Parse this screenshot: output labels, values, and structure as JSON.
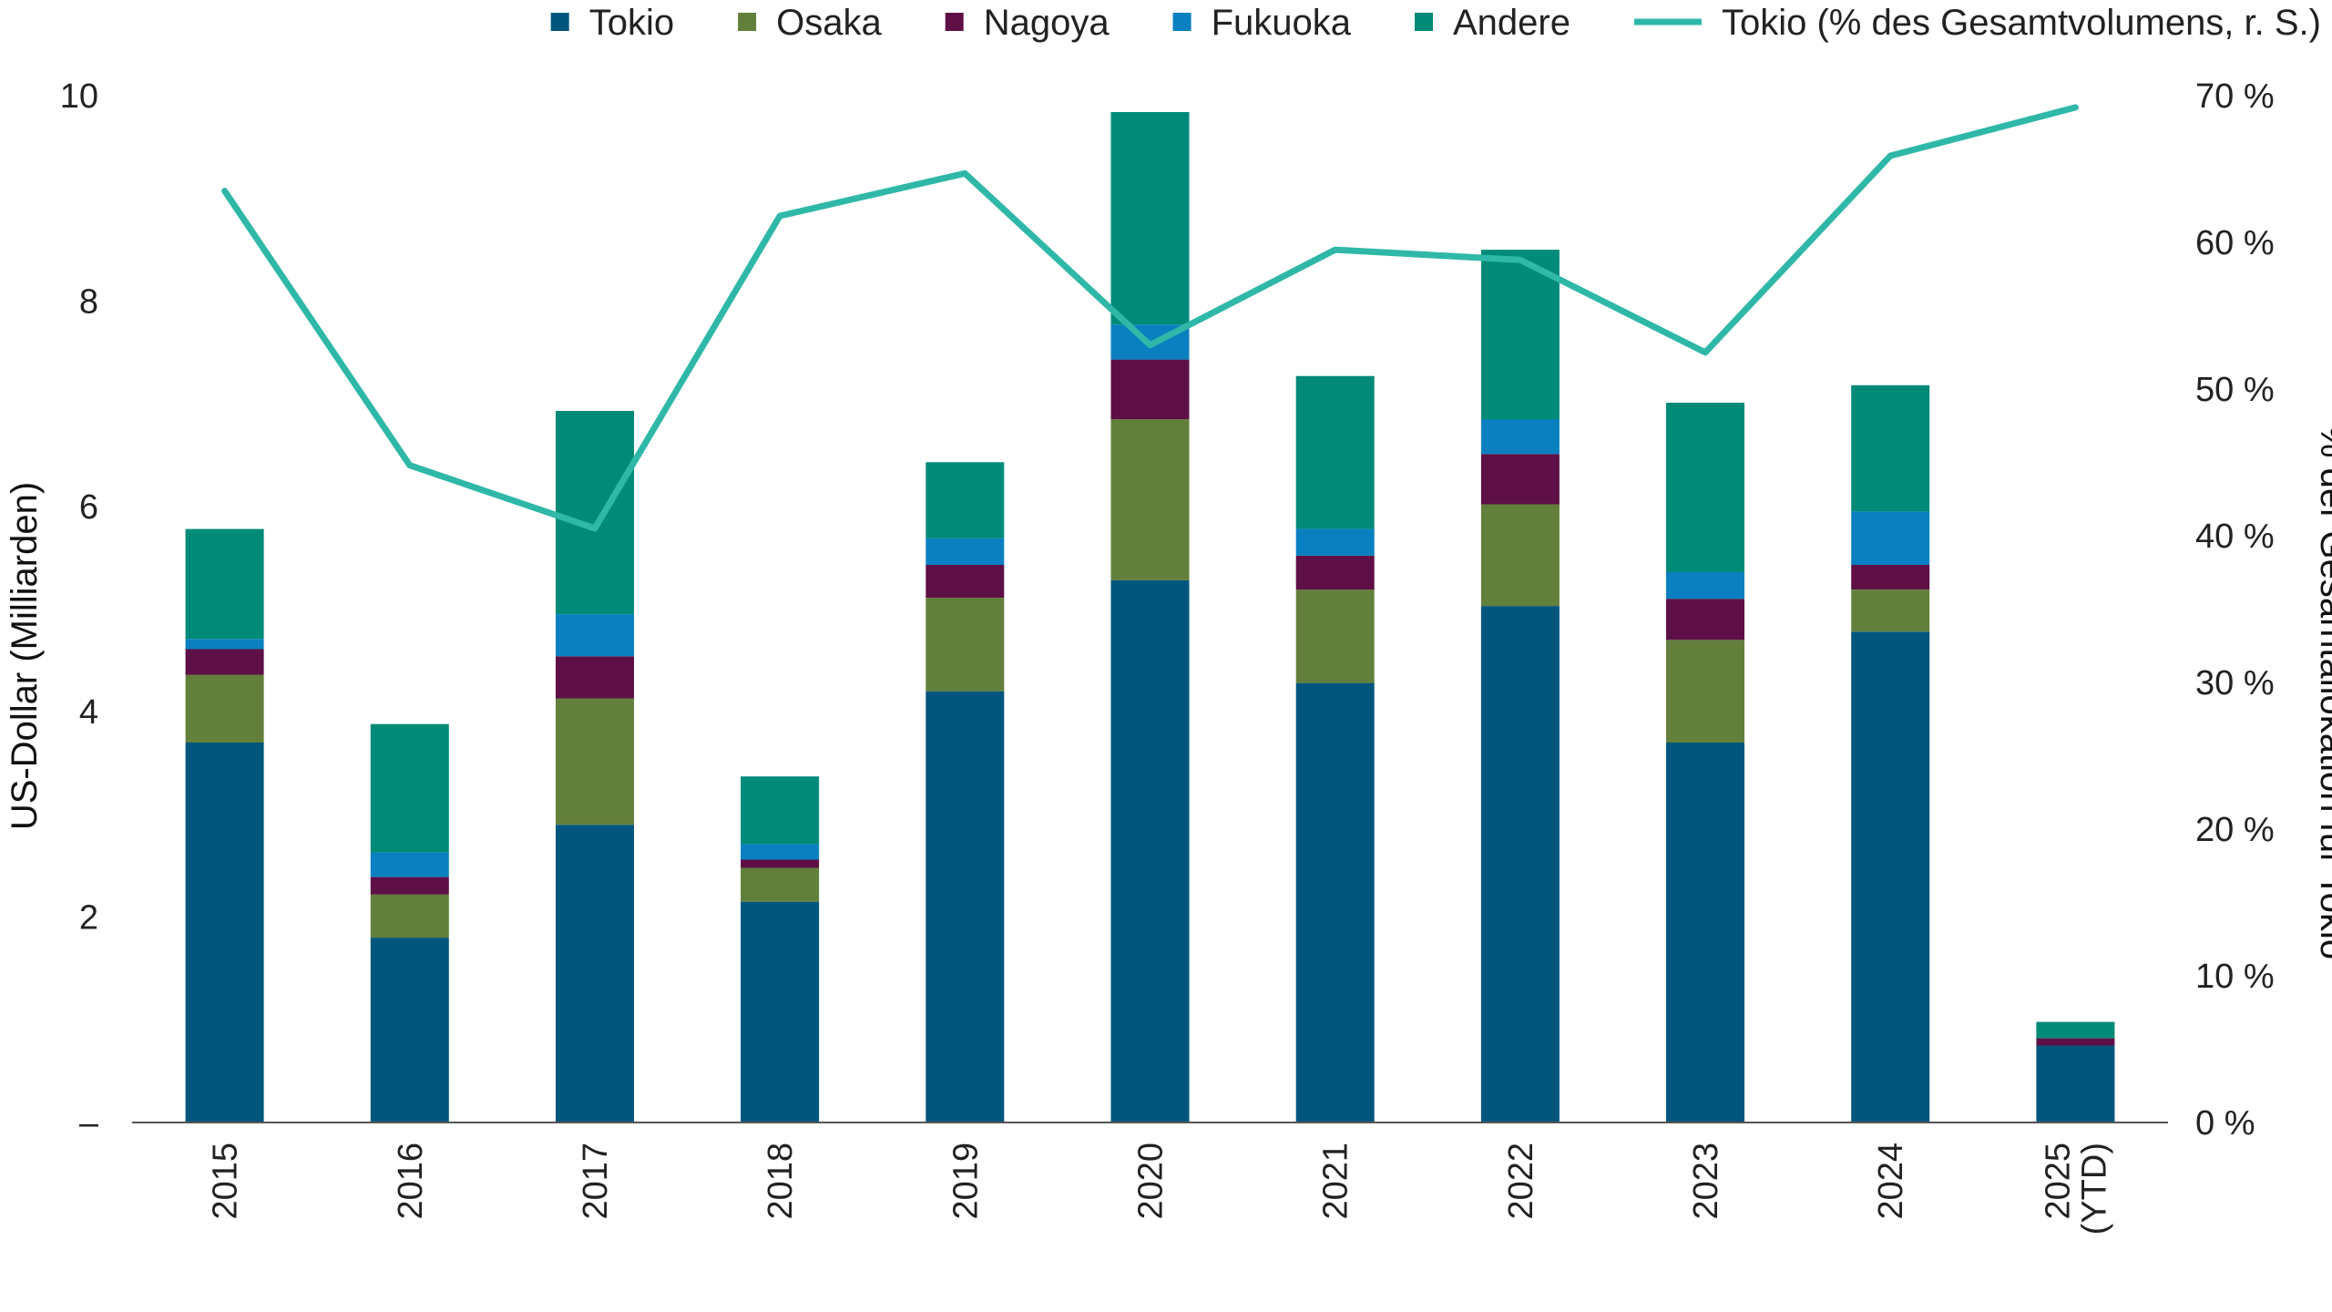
{
  "chart_data": {
    "type": "bar",
    "stacked": true,
    "categories": [
      "2015",
      "2016",
      "2017",
      "2018",
      "2019",
      "2020",
      "2021",
      "2022",
      "2023",
      "2024",
      "2025 (YTD)"
    ],
    "category_lines": [
      [
        "2015"
      ],
      [
        "2016"
      ],
      [
        "2017"
      ],
      [
        "2018"
      ],
      [
        "2019"
      ],
      [
        "2020"
      ],
      [
        "2021"
      ],
      [
        "2022"
      ],
      [
        "2023"
      ],
      [
        "2024"
      ],
      [
        "2025",
        "(YTD)"
      ]
    ],
    "series": [
      {
        "name": "Tokio",
        "color": "#00567d",
        "values": [
          3.7,
          1.8,
          2.9,
          2.15,
          4.2,
          5.28,
          4.28,
          5.03,
          3.7,
          4.78,
          0.75
        ]
      },
      {
        "name": "Osaka",
        "color": "#62803c",
        "values": [
          0.66,
          0.42,
          1.23,
          0.33,
          0.91,
          1.57,
          0.91,
          0.99,
          1.0,
          0.41,
          0
        ]
      },
      {
        "name": "Nagoya",
        "color": "#5e1046",
        "values": [
          0.25,
          0.17,
          0.41,
          0.08,
          0.32,
          0.58,
          0.33,
          0.49,
          0.4,
          0.24,
          0.07
        ]
      },
      {
        "name": "Fukuoka",
        "color": "#0a80c0",
        "values": [
          0.1,
          0.24,
          0.41,
          0.15,
          0.26,
          0.34,
          0.26,
          0.34,
          0.26,
          0.52,
          0
        ]
      },
      {
        "name": "Andere",
        "color": "#008a78",
        "values": [
          1.07,
          1.25,
          1.98,
          0.66,
          0.74,
          2.07,
          1.49,
          1.65,
          1.65,
          1.23,
          0.16
        ]
      }
    ],
    "line_series": {
      "name": "Tokio (% des Gesamtvolumens, r. S.)",
      "color": "#2fb8a8",
      "axis": "right",
      "values": [
        63.5,
        44.8,
        40.5,
        61.8,
        64.7,
        53.0,
        59.5,
        58.8,
        52.5,
        65.9,
        69.2
      ]
    },
    "title": "",
    "ylabel": "US-Dollar (Milliarden)",
    "ylabel_right": "% der Gesamtallokation für Tokio",
    "ylim": [
      0,
      10
    ],
    "ylim_right": [
      0,
      70
    ],
    "y_ticks": [
      {
        "value": 0,
        "label": "–"
      },
      {
        "value": 2,
        "label": "2"
      },
      {
        "value": 4,
        "label": "4"
      },
      {
        "value": 6,
        "label": "6"
      },
      {
        "value": 8,
        "label": "8"
      },
      {
        "value": 10,
        "label": "10"
      }
    ],
    "y_ticks_right": [
      {
        "value": 0,
        "label": "0 %"
      },
      {
        "value": 10,
        "label": "10 %"
      },
      {
        "value": 20,
        "label": "20 %"
      },
      {
        "value": 30,
        "label": "30 %"
      },
      {
        "value": 40,
        "label": "40 %"
      },
      {
        "value": 50,
        "label": "50 %"
      },
      {
        "value": 60,
        "label": "60 %"
      },
      {
        "value": 70,
        "label": "70 %"
      }
    ],
    "legend_position": "top",
    "grid": false
  }
}
